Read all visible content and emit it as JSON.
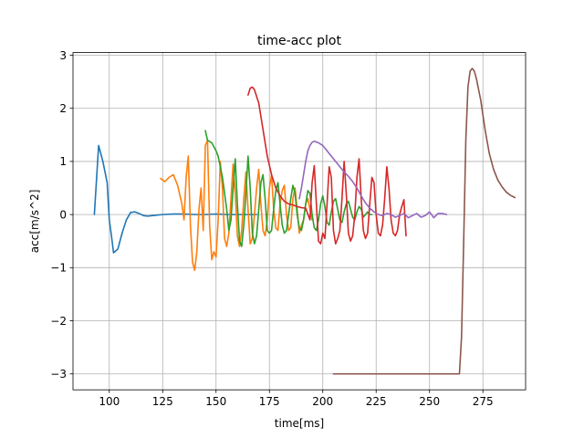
{
  "chart_data": {
    "type": "line",
    "title": "time-acc plot",
    "xlabel": "time[ms]",
    "ylabel": "acc[m/s^2]",
    "xlim": [
      83,
      295
    ],
    "ylim": [
      -3.3,
      3.05
    ],
    "xticks": [
      100,
      125,
      150,
      175,
      200,
      225,
      250,
      275
    ],
    "yticks": [
      -3,
      -2,
      -1,
      0,
      1,
      2,
      3
    ],
    "xtick_labels": [
      "100",
      "125",
      "150",
      "175",
      "200",
      "225",
      "250",
      "275"
    ],
    "ytick_labels": [
      "−3",
      "−2",
      "−1",
      "0",
      "1",
      "2",
      "3"
    ],
    "grid": true,
    "legend": "none",
    "series": [
      {
        "color": "#1f77b4",
        "x": [
          93,
          95,
          97,
          99,
          100,
          101,
          102,
          104,
          106,
          108,
          110,
          112,
          114,
          116,
          118,
          120,
          125,
          130,
          135,
          140,
          145,
          150,
          155,
          160,
          165,
          169
        ],
        "y": [
          0.0,
          1.3,
          1.0,
          0.6,
          -0.1,
          -0.4,
          -0.72,
          -0.65,
          -0.35,
          -0.1,
          0.04,
          0.05,
          0.02,
          -0.02,
          -0.03,
          -0.02,
          0.0,
          0.01,
          0.01,
          0.0,
          0.0,
          0.01,
          0.0,
          0.0,
          0.0,
          0.0
        ]
      },
      {
        "color": "#ff7f0e",
        "x": [
          124,
          126,
          128,
          130,
          132,
          134,
          135,
          136,
          137,
          138,
          139,
          140,
          141,
          142,
          143,
          144,
          145,
          146,
          147,
          148,
          149,
          150,
          151,
          152,
          153,
          154,
          155,
          156,
          157,
          158,
          159,
          160,
          161,
          162,
          163,
          164,
          165,
          166,
          167,
          168,
          169,
          170,
          171,
          172,
          173,
          174,
          175,
          176,
          177,
          178,
          179,
          180,
          181,
          182,
          183,
          184,
          185,
          186,
          187,
          188,
          189,
          190,
          191,
          192,
          193,
          194,
          195
        ],
        "y": [
          0.68,
          0.62,
          0.7,
          0.75,
          0.55,
          0.2,
          -0.1,
          0.7,
          1.1,
          -0.2,
          -0.9,
          -1.05,
          -0.7,
          0.1,
          0.5,
          -0.3,
          1.3,
          1.4,
          -0.2,
          -0.85,
          -0.7,
          -0.8,
          -0.1,
          1.0,
          0.5,
          -0.45,
          -0.6,
          -0.35,
          0.3,
          0.95,
          0.4,
          -0.4,
          -0.6,
          -0.3,
          0.3,
          0.8,
          0.1,
          -0.55,
          -0.45,
          0.0,
          0.5,
          0.85,
          0.2,
          -0.3,
          -0.4,
          -0.1,
          0.5,
          0.75,
          0.1,
          -0.25,
          -0.3,
          0.2,
          0.45,
          0.55,
          0.0,
          -0.3,
          -0.25,
          0.3,
          0.5,
          0.1,
          -0.35,
          -0.2,
          -0.1,
          0.2,
          0.3,
          0.1,
          -0.1
        ]
      },
      {
        "color": "#2ca02c",
        "x": [
          145,
          146,
          148,
          150,
          151,
          152,
          153,
          154,
          155,
          156,
          157,
          158,
          159,
          160,
          161,
          162,
          163,
          164,
          165,
          166,
          167,
          168,
          169,
          170,
          171,
          172,
          173,
          174,
          175,
          176,
          177,
          178,
          179,
          180,
          181,
          182,
          183,
          184,
          185,
          186,
          187,
          188,
          189,
          190,
          191,
          192,
          193,
          194,
          195,
          196,
          197,
          198,
          199,
          200,
          201,
          202,
          203,
          204,
          205,
          206,
          207,
          208,
          209,
          210,
          211,
          212,
          213,
          214,
          215,
          216,
          217,
          218,
          219,
          220,
          221,
          222,
          223
        ],
        "y": [
          1.58,
          1.4,
          1.35,
          1.2,
          1.1,
          0.9,
          0.7,
          0.4,
          0.1,
          -0.3,
          -0.1,
          0.5,
          1.05,
          0.2,
          -0.5,
          -0.6,
          -0.2,
          0.4,
          1.1,
          0.5,
          -0.35,
          -0.55,
          -0.4,
          0.1,
          0.6,
          0.75,
          0.3,
          -0.3,
          -0.35,
          -0.3,
          0.1,
          0.45,
          0.6,
          0.2,
          -0.2,
          -0.35,
          -0.3,
          0.0,
          0.3,
          0.55,
          0.4,
          0.0,
          -0.25,
          -0.3,
          -0.1,
          0.2,
          0.45,
          0.4,
          0.0,
          -0.25,
          -0.3,
          -0.1,
          0.2,
          0.35,
          0.15,
          -0.15,
          -0.2,
          0.05,
          0.25,
          0.3,
          0.1,
          -0.1,
          -0.15,
          0.05,
          0.2,
          0.25,
          0.1,
          -0.05,
          -0.1,
          0.05,
          0.15,
          0.1,
          -0.05,
          0.0,
          0.05,
          0.0,
          0.0
        ]
      },
      {
        "color": "#d62728",
        "x": [
          165,
          166,
          167,
          168,
          170,
          172,
          174,
          176,
          178,
          180,
          182,
          184,
          186,
          188,
          190,
          192,
          194,
          195,
          196,
          197,
          198,
          199,
          200,
          201,
          202,
          203,
          204,
          205,
          206,
          207,
          208,
          209,
          210,
          211,
          212,
          213,
          214,
          215,
          216,
          217,
          218,
          219,
          220,
          221,
          222,
          223,
          224,
          225,
          226,
          227,
          228,
          229,
          230,
          231,
          232,
          233,
          234,
          235,
          236,
          237,
          238,
          239
        ],
        "y": [
          2.25,
          2.38,
          2.4,
          2.35,
          2.1,
          1.6,
          1.1,
          0.75,
          0.5,
          0.35,
          0.25,
          0.2,
          0.18,
          0.15,
          0.13,
          0.12,
          -0.1,
          0.6,
          0.92,
          0.2,
          -0.5,
          -0.55,
          -0.35,
          -0.45,
          0.2,
          0.9,
          0.7,
          -0.3,
          -0.55,
          -0.45,
          -0.3,
          0.3,
          1.0,
          0.4,
          -0.35,
          -0.5,
          -0.4,
          0.0,
          0.7,
          1.05,
          0.3,
          -0.3,
          -0.45,
          -0.35,
          0.2,
          0.7,
          0.6,
          0.0,
          -0.35,
          -0.4,
          -0.2,
          0.3,
          0.9,
          0.5,
          -0.1,
          -0.35,
          -0.4,
          -0.3,
          0.0,
          0.15,
          0.28,
          -0.4
        ]
      },
      {
        "color": "#9467bd",
        "x": [
          189,
          190,
          191,
          192,
          193,
          194,
          195,
          196,
          198,
          200,
          202,
          204,
          206,
          208,
          210,
          212,
          214,
          216,
          218,
          220,
          222,
          224,
          226,
          228,
          230,
          232,
          234,
          236,
          238,
          240,
          242,
          244,
          246,
          248,
          250,
          252,
          254,
          256,
          258
        ],
        "y": [
          0.3,
          0.5,
          0.75,
          1.0,
          1.2,
          1.3,
          1.36,
          1.38,
          1.35,
          1.3,
          1.2,
          1.1,
          1.0,
          0.9,
          0.8,
          0.72,
          0.62,
          0.5,
          0.35,
          0.22,
          0.12,
          0.05,
          0.0,
          -0.02,
          0.02,
          0.0,
          -0.05,
          -0.02,
          0.02,
          -0.06,
          -0.02,
          0.02,
          -0.05,
          -0.02,
          0.05,
          -0.06,
          0.02,
          0.02,
          0.0
        ]
      },
      {
        "color": "#8c564b",
        "x": [
          205,
          220,
          240,
          255,
          264,
          265,
          266,
          267,
          268,
          269,
          270,
          271,
          272,
          274,
          276,
          278,
          280,
          282,
          284,
          286,
          288,
          290
        ],
        "y": [
          -3.0,
          -3.0,
          -3.0,
          -3.0,
          -3.0,
          -2.3,
          -0.5,
          1.4,
          2.4,
          2.7,
          2.75,
          2.7,
          2.55,
          2.15,
          1.6,
          1.15,
          0.85,
          0.65,
          0.52,
          0.42,
          0.36,
          0.32
        ]
      }
    ]
  }
}
